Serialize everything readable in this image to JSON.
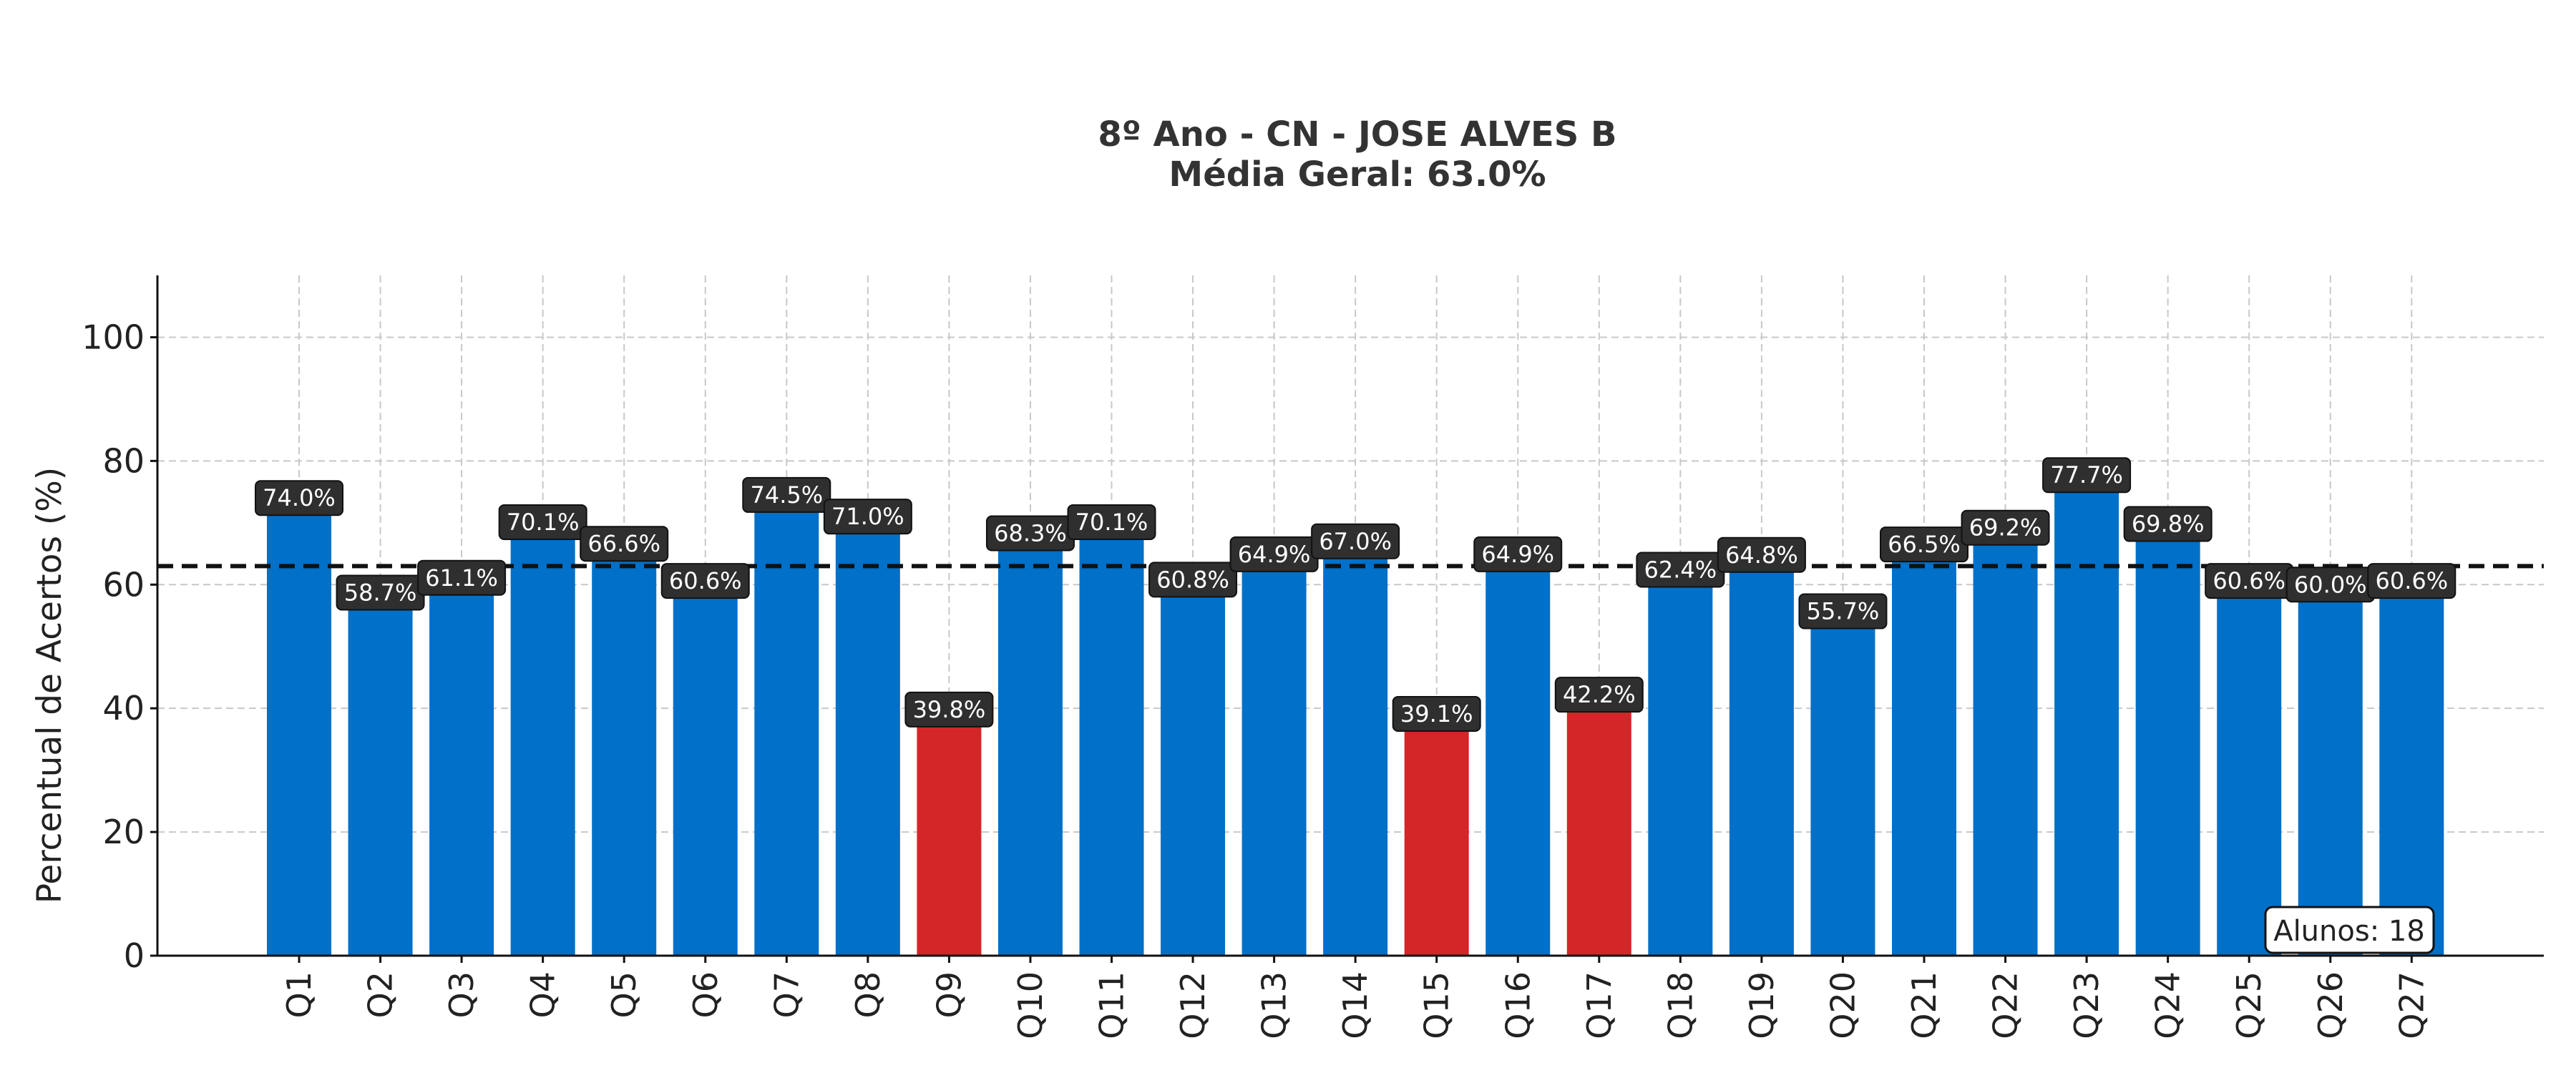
{
  "chart_data": {
    "type": "bar",
    "title": "8º Ano - CN - JOSE ALVES B",
    "subtitle": "Média Geral: 63.0%",
    "ylabel": "Percentual de Acertos (%)",
    "xlabel": "",
    "ylim": [
      0,
      110
    ],
    "yticks": [
      0,
      20,
      40,
      60,
      80,
      100
    ],
    "grid": true,
    "categories": [
      "Q1",
      "Q2",
      "Q3",
      "Q4",
      "Q5",
      "Q6",
      "Q7",
      "Q8",
      "Q9",
      "Q10",
      "Q11",
      "Q12",
      "Q13",
      "Q14",
      "Q15",
      "Q16",
      "Q17",
      "Q18",
      "Q19",
      "Q20",
      "Q21",
      "Q22",
      "Q23",
      "Q24",
      "Q25",
      "Q26",
      "Q27"
    ],
    "values": [
      74.0,
      58.7,
      61.1,
      70.1,
      66.6,
      60.6,
      74.5,
      71.0,
      39.8,
      68.3,
      70.1,
      60.8,
      64.9,
      67.0,
      39.1,
      64.9,
      42.2,
      62.4,
      64.8,
      55.7,
      66.5,
      69.2,
      77.7,
      69.8,
      60.6,
      60.0,
      60.6
    ],
    "value_labels": [
      "74.0%",
      "58.7%",
      "61.1%",
      "70.1%",
      "66.6%",
      "60.6%",
      "74.5%",
      "71.0%",
      "39.8%",
      "68.3%",
      "70.1%",
      "60.8%",
      "64.9%",
      "67.0%",
      "39.1%",
      "64.9%",
      "42.2%",
      "62.4%",
      "64.8%",
      "55.7%",
      "66.5%",
      "69.2%",
      "77.7%",
      "69.8%",
      "60.6%",
      "60.0%",
      "60.6%"
    ],
    "mean_line": 63.0,
    "low_threshold": 50,
    "colors": {
      "normal": "#0070C8",
      "low": "#D42628",
      "label_box": "#2F2F2F",
      "mean_line": "#111111",
      "grid": "#c8c8c8"
    },
    "annotation": "Alunos: 18"
  }
}
